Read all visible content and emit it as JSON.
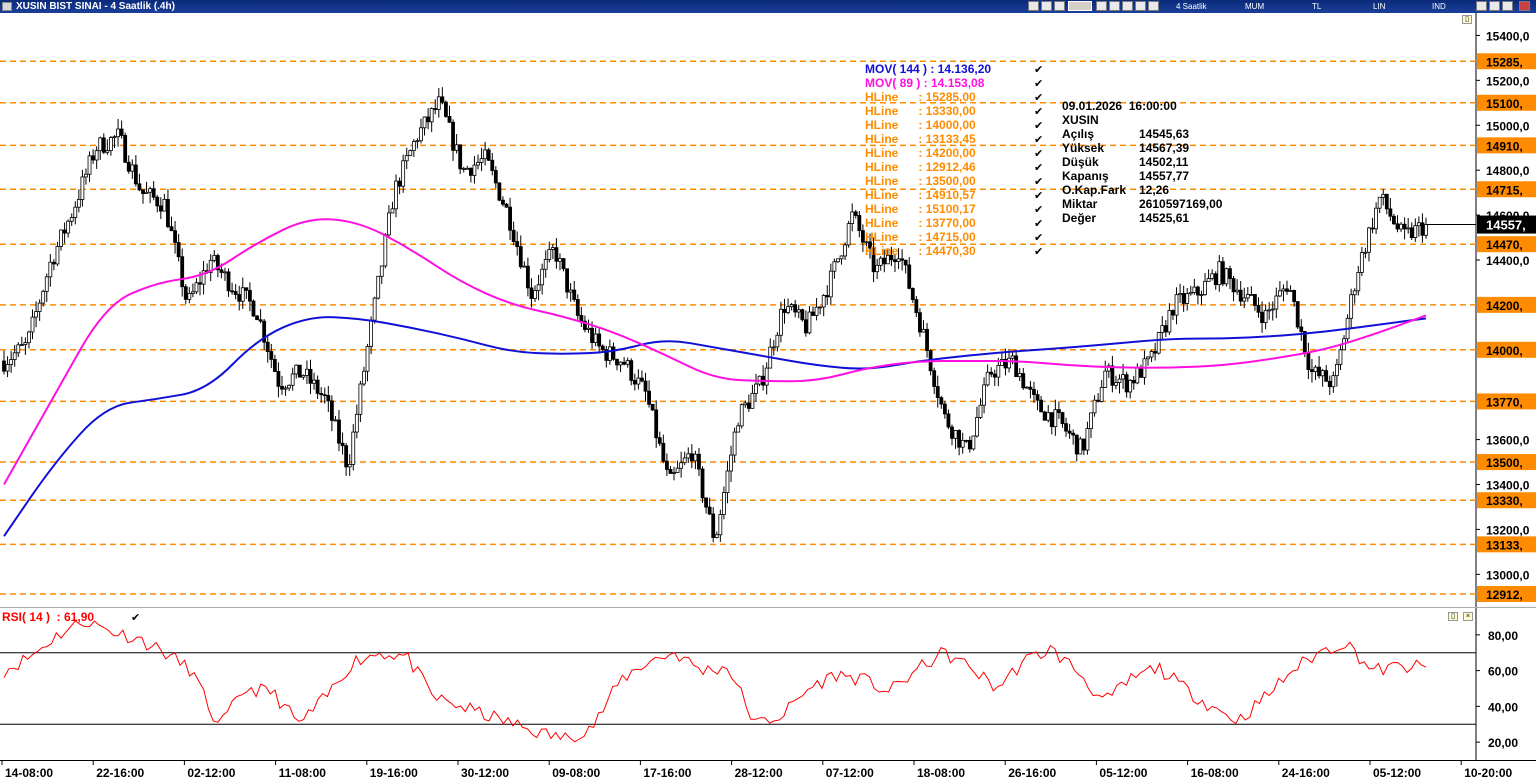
{
  "window": {
    "title": "XUSIN BIST SINAI - 4 Saatlik (.4h)",
    "toolbar": {
      "period": "4 Saatlik",
      "chart_style": "MUM",
      "currency": "TL",
      "scale": "LIN",
      "indicator": "IND"
    }
  },
  "chart_data": [
    {
      "type": "candlestick",
      "symbol": "XUSIN",
      "y_axis": {
        "ticks": [
          13000,
          13200,
          13400,
          13600,
          14400,
          14600,
          14800,
          15000,
          15200,
          15400
        ],
        "tick_labels": [
          "13000,0",
          "13200,0",
          "13400,0",
          "13600,0",
          "14400,0",
          "14600,0",
          "14800,0",
          "15000,0",
          "15200,0",
          "15400,0"
        ],
        "ylim": [
          12850,
          15500
        ]
      },
      "x_axis": {
        "tick_labels": [
          "14-08:00",
          "22-16:00",
          "02-12:00",
          "11-08:00",
          "19-16:00",
          "30-12:00",
          "09-08:00",
          "17-16:00",
          "28-12:00",
          "07-12:00",
          "18-08:00",
          "26-16:00",
          "05-12:00",
          "16-08:00",
          "24-16:00",
          "05-12:00",
          "10-20:00"
        ]
      },
      "last_price": 14557.77,
      "last_price_label": "14557,",
      "close_path": [
        13950,
        14020,
        14380,
        14620,
        14900,
        14950,
        14700,
        14650,
        14200,
        14400,
        14280,
        14180,
        13850,
        13900,
        13780,
        13480,
        14100,
        14700,
        14950,
        15100,
        14800,
        14850,
        14600,
        14250,
        14450,
        14150,
        14000,
        13950,
        13800,
        13400,
        13550,
        13150,
        13700,
        13850,
        14200,
        14100,
        14300,
        14600,
        14350,
        14450,
        14100,
        13700,
        13550,
        13900,
        13950,
        13750,
        13680,
        13550,
        13900,
        13850,
        13950,
        14200,
        14250,
        14350,
        14250,
        14150,
        14300,
        13900,
        13850,
        14350,
        14680,
        14500,
        14557.77
      ],
      "series": [
        {
          "name": "MOV( 144 )",
          "value": 14136.2,
          "label": "MOV( 144 ) : 14.136,20",
          "color": "#1010d8",
          "path": [
            13170,
            13500,
            13750,
            13780,
            13820,
            14050,
            14150,
            14140,
            14100,
            14050,
            13990,
            13980,
            13990,
            14050,
            14010,
            13970,
            13930,
            13910,
            13950,
            13975,
            13995,
            14010,
            14030,
            14050,
            14050,
            14060,
            14080,
            14110,
            14140
          ]
        },
        {
          "name": "MOV( 89 )",
          "value": 14153.08,
          "label": "MOV( 89 ) : 14.153,08",
          "color": "#ff10e0",
          "path": [
            13400,
            13800,
            14200,
            14300,
            14330,
            14480,
            14590,
            14570,
            14450,
            14300,
            14200,
            14150,
            14080,
            13980,
            13870,
            13860,
            13860,
            13920,
            13950,
            13950,
            13950,
            13930,
            13920,
            13920,
            13930,
            13960,
            14000,
            14070,
            14153.08
          ]
        }
      ],
      "hlines": [
        {
          "label": "HLine",
          "value_text": ": 15285,00",
          "value": 15285.0,
          "axis_tag": "15285,"
        },
        {
          "label": "HLine",
          "value_text": ": 13330,00",
          "value": 13330.0,
          "axis_tag": "13330,"
        },
        {
          "label": "HLine",
          "value_text": ": 14000,00",
          "value": 14000.0,
          "axis_tag": "14000,"
        },
        {
          "label": "HLine",
          "value_text": ": 13133,45",
          "value": 13133.45,
          "axis_tag": "13133,"
        },
        {
          "label": "HLine",
          "value_text": ": 14200,00",
          "value": 14200.0,
          "axis_tag": "14200,"
        },
        {
          "label": "HLine",
          "value_text": ": 12912,46",
          "value": 12912.46,
          "axis_tag": "12912,"
        },
        {
          "label": "HLine",
          "value_text": ": 13500,00",
          "value": 13500.0,
          "axis_tag": "13500,"
        },
        {
          "label": "HLine",
          "value_text": ": 14910,57",
          "value": 14910.57,
          "axis_tag": "14910,"
        },
        {
          "label": "HLine",
          "value_text": ": 15100,17",
          "value": 15100.17,
          "axis_tag": "15100,"
        },
        {
          "label": "HLine",
          "value_text": ": 13770,00",
          "value": 13770.0,
          "axis_tag": "13770,"
        },
        {
          "label": "HLine",
          "value_text": ": 14715,00",
          "value": 14715.0,
          "axis_tag": "14715,"
        },
        {
          "label": "HLine",
          "value_text": ": 14470,30",
          "value": 14470.3,
          "axis_tag": "14470,"
        }
      ],
      "colors": {
        "hline": "#ff8c00",
        "candle": "#000000",
        "axis_tag_bg": "#ff8c00",
        "last_price_bg": "#000000"
      }
    },
    {
      "type": "line",
      "name": "RSI( 14 )",
      "label": "RSI( 14 )  : 61,90",
      "value": 61.9,
      "color": "#ff0000",
      "y_axis": {
        "ticks": [
          20,
          40,
          60,
          80
        ],
        "tick_labels": [
          "20,00",
          "40,00",
          "60,00",
          "80,00"
        ],
        "ylim": [
          10,
          95
        ]
      },
      "levels": [
        30,
        70
      ],
      "path": [
        60,
        68,
        80,
        88,
        82,
        78,
        70,
        60,
        28,
        50,
        48,
        30,
        45,
        65,
        70,
        68,
        45,
        40,
        35,
        30,
        25,
        22,
        30,
        55,
        65,
        70,
        60,
        62,
        30,
        35,
        50,
        58,
        55,
        48,
        60,
        70,
        62,
        50,
        65,
        72,
        60,
        42,
        55,
        62,
        50,
        40,
        32,
        45,
        60,
        70,
        76,
        60,
        62,
        61.9
      ]
    }
  ],
  "info_box": {
    "datetime": "09.01.2026  16:00:00",
    "symbol": "XUSIN",
    "rows": [
      {
        "label": "Açılış",
        "value": "14545,63"
      },
      {
        "label": "Yüksek",
        "value": "14567,39"
      },
      {
        "label": "Düşük",
        "value": "14502,11"
      },
      {
        "label": "Kapanış",
        "value": "14557,77"
      },
      {
        "label": "O.Kap.Fark",
        "value": "12,26"
      },
      {
        "label": "Miktar",
        "value": "2610597169,00"
      },
      {
        "label": "Değer",
        "value": "14525,61"
      }
    ]
  }
}
